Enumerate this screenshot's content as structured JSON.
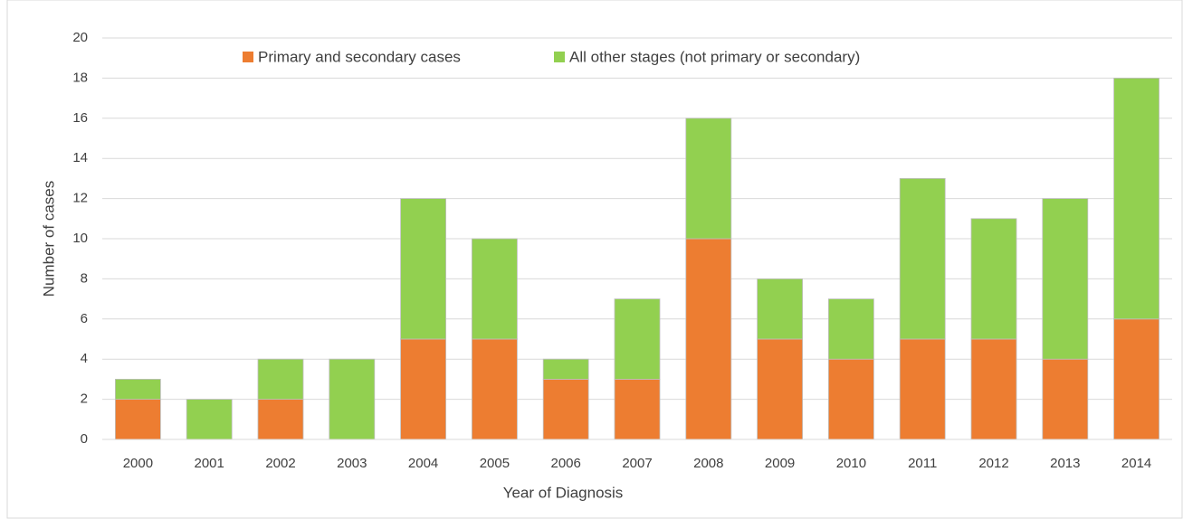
{
  "chart_data": {
    "type": "bar",
    "stacked": true,
    "xlabel": "Year of Diagnosis",
    "ylabel": "Number of cases",
    "categories": [
      "2000",
      "2001",
      "2002",
      "2003",
      "2004",
      "2005",
      "2006",
      "2007",
      "2008",
      "2009",
      "2010",
      "2011",
      "2012",
      "2013",
      "2014"
    ],
    "series": [
      {
        "name": "Primary and secondary cases",
        "color": "#ed7d31",
        "values": [
          2,
          0,
          2,
          0,
          5,
          5,
          3,
          3,
          10,
          5,
          4,
          5,
          5,
          4,
          6
        ]
      },
      {
        "name": "All other stages (not primary or secondary)",
        "color": "#92d050",
        "values": [
          1,
          2,
          2,
          4,
          7,
          5,
          1,
          4,
          6,
          3,
          3,
          8,
          6,
          8,
          12
        ]
      }
    ],
    "ylim": [
      0,
      20
    ],
    "yticks": [
      0,
      2,
      4,
      6,
      8,
      10,
      12,
      14,
      16,
      18,
      20
    ],
    "grid": true,
    "legend": "top"
  }
}
